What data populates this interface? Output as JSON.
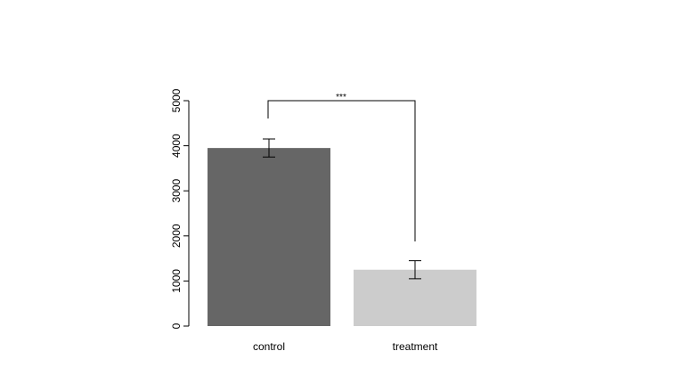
{
  "chart_data": {
    "type": "bar",
    "categories": [
      "control",
      "treatment"
    ],
    "values": [
      3950,
      1250
    ],
    "errors": [
      200,
      200
    ],
    "colors": [
      "#666666",
      "#cccccc"
    ],
    "ylim": [
      0,
      5000
    ],
    "yticks": [
      0,
      1000,
      2000,
      3000,
      4000,
      5000
    ],
    "annotation": "***"
  }
}
